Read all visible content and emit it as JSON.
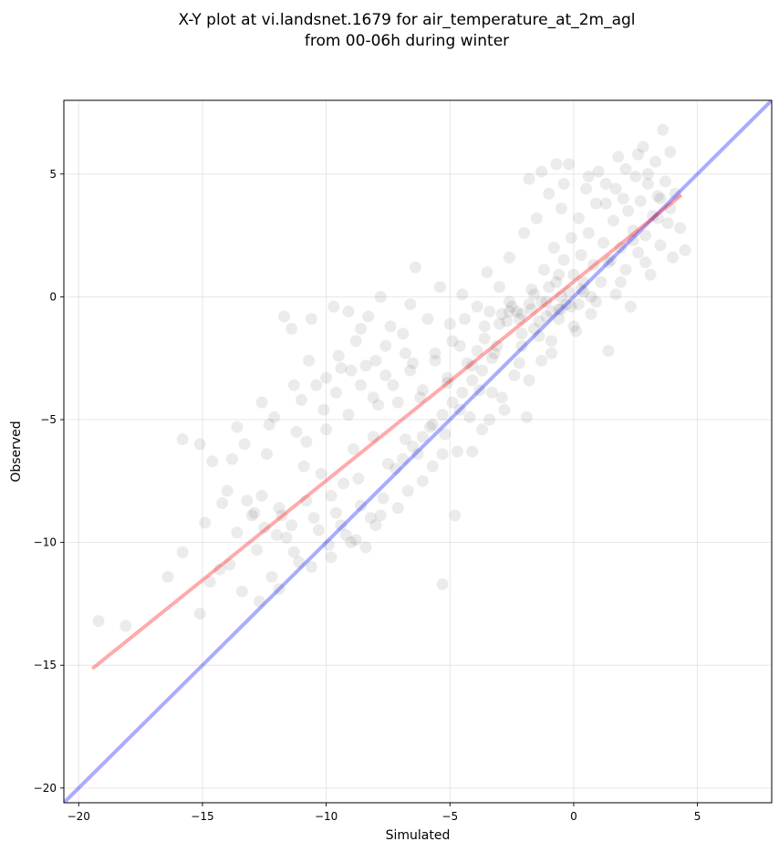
{
  "chart_data": {
    "type": "scatter",
    "title": "X-Y plot at vi.landsnet.1679 for air_temperature_at_2m_agl",
    "subtitle": "from 00-06h during winter",
    "xlabel": "Simulated",
    "ylabel": "Observed",
    "xlim": [
      -20.6,
      8.0
    ],
    "ylim": [
      -20.6,
      8.0
    ],
    "grid": true,
    "xticks": [
      -20,
      -15,
      -10,
      -5,
      0,
      5
    ],
    "yticks": [
      -20,
      -15,
      -10,
      -5,
      0,
      5
    ],
    "xtick_labels": [
      "−20",
      "−15",
      "−10",
      "−5",
      "0",
      "5"
    ],
    "ytick_labels": [
      "−20",
      "−15",
      "−10",
      "−5",
      "0",
      "5"
    ],
    "marker_color": "#000000",
    "marker_alpha": 0.08,
    "fit_line": {
      "color": "#ff0000",
      "opacity": 0.33,
      "x": [
        -19.4,
        4.3
      ],
      "y": [
        -15.1,
        4.1
      ]
    },
    "identity_line": {
      "color": "#0000ff",
      "opacity": 0.33,
      "x": [
        -20.6,
        8.0
      ],
      "y": [
        -20.6,
        8.0
      ]
    },
    "points": [
      [
        -19.2,
        -13.2
      ],
      [
        -18.1,
        -13.4
      ],
      [
        -16.4,
        -11.4
      ],
      [
        -15.8,
        -10.4
      ],
      [
        -15.8,
        -5.8
      ],
      [
        -15.1,
        -12.9
      ],
      [
        -14.9,
        -9.2
      ],
      [
        -15.1,
        -6.0
      ],
      [
        -14.6,
        -6.7
      ],
      [
        -14.2,
        -8.4
      ],
      [
        -14.0,
        -7.9
      ],
      [
        -13.8,
        -6.6
      ],
      [
        -13.6,
        -5.3
      ],
      [
        -13.3,
        -6.0
      ],
      [
        -13.2,
        -8.3
      ],
      [
        -12.9,
        -8.8
      ],
      [
        -12.6,
        -8.1
      ],
      [
        -12.6,
        -4.3
      ],
      [
        -12.4,
        -6.4
      ],
      [
        -12.3,
        -5.2
      ],
      [
        -12.1,
        -4.9
      ],
      [
        -12.0,
        -9.7
      ],
      [
        -11.8,
        -8.9
      ],
      [
        -11.7,
        -0.8
      ],
      [
        -11.4,
        -1.3
      ],
      [
        -11.3,
        -3.6
      ],
      [
        -11.2,
        -5.5
      ],
      [
        -11.0,
        -4.2
      ],
      [
        -10.9,
        -6.9
      ],
      [
        -10.7,
        -2.6
      ],
      [
        -10.6,
        -0.9
      ],
      [
        -10.4,
        -3.6
      ],
      [
        -10.2,
        -7.2
      ],
      [
        -10.0,
        -5.4
      ],
      [
        -9.8,
        -8.1
      ],
      [
        -9.7,
        -0.4
      ],
      [
        -9.5,
        -2.4
      ],
      [
        -9.3,
        -7.6
      ],
      [
        -9.1,
        -0.6
      ],
      [
        -9.0,
        -3.0
      ],
      [
        -8.9,
        -6.2
      ],
      [
        -8.7,
        -7.4
      ],
      [
        -8.6,
        -1.3
      ],
      [
        -8.4,
        -2.8
      ],
      [
        -8.3,
        -0.8
      ],
      [
        -8.1,
        -5.7
      ],
      [
        -7.9,
        -4.4
      ],
      [
        -7.8,
        0.0
      ],
      [
        -7.6,
        -2.0
      ],
      [
        -7.5,
        -6.8
      ],
      [
        -7.3,
        -3.6
      ],
      [
        -7.1,
        -8.6
      ],
      [
        -6.9,
        -1.5
      ],
      [
        -6.8,
        -5.8
      ],
      [
        -6.6,
        -0.3
      ],
      [
        -6.5,
        -2.7
      ],
      [
        -6.4,
        1.2
      ],
      [
        -6.2,
        -4.1
      ],
      [
        -6.1,
        -7.5
      ],
      [
        -5.9,
        -0.9
      ],
      [
        -5.8,
        -5.3
      ],
      [
        -5.6,
        -2.3
      ],
      [
        -5.4,
        0.4
      ],
      [
        -5.3,
        -6.4
      ],
      [
        -5.3,
        -11.7
      ],
      [
        -5.1,
        -3.5
      ],
      [
        -5.0,
        -1.1
      ],
      [
        -4.8,
        -8.9
      ],
      [
        -4.6,
        -4.6
      ],
      [
        -4.5,
        0.1
      ],
      [
        -4.3,
        -2.7
      ],
      [
        -4.1,
        -6.3
      ],
      [
        -3.9,
        -0.4
      ],
      [
        -3.8,
        -3.8
      ],
      [
        -3.6,
        -1.7
      ],
      [
        -3.5,
        1.0
      ],
      [
        -3.4,
        -5.0
      ],
      [
        -3.2,
        -2.3
      ],
      [
        -3.0,
        0.4
      ],
      [
        -2.9,
        -4.1
      ],
      [
        -2.7,
        -1.0
      ],
      [
        -2.6,
        1.6
      ],
      [
        -2.4,
        -3.2
      ],
      [
        -2.3,
        -0.6
      ],
      [
        -2.1,
        -2.0
      ],
      [
        -2.0,
        2.6
      ],
      [
        -1.9,
        -4.9
      ],
      [
        -1.7,
        0.3
      ],
      [
        -1.6,
        -1.3
      ],
      [
        -1.5,
        3.2
      ],
      [
        -1.3,
        -2.6
      ],
      [
        -1.2,
        1.1
      ],
      [
        -1.1,
        -0.2
      ],
      [
        -1.0,
        4.2
      ],
      [
        -0.9,
        -1.8
      ],
      [
        -0.8,
        2.0
      ],
      [
        -0.7,
        0.6
      ],
      [
        -0.6,
        -0.9
      ],
      [
        -0.5,
        3.6
      ],
      [
        -0.4,
        1.5
      ],
      [
        -0.3,
        -0.3
      ],
      [
        -0.2,
        5.4
      ],
      [
        -0.1,
        2.4
      ],
      [
        0.0,
        0.9
      ],
      [
        0.1,
        -1.4
      ],
      [
        0.2,
        3.2
      ],
      [
        0.3,
        1.7
      ],
      [
        0.4,
        0.2
      ],
      [
        0.5,
        4.4
      ],
      [
        0.6,
        2.6
      ],
      [
        0.7,
        -0.7
      ],
      [
        0.8,
        1.3
      ],
      [
        0.9,
        3.8
      ],
      [
        1.0,
        5.1
      ],
      [
        1.1,
        0.6
      ],
      [
        1.2,
        2.2
      ],
      [
        1.3,
        4.6
      ],
      [
        1.4,
        -2.2
      ],
      [
        1.5,
        1.5
      ],
      [
        1.6,
        3.1
      ],
      [
        1.7,
        0.1
      ],
      [
        1.8,
        5.7
      ],
      [
        1.9,
        2.0
      ],
      [
        2.0,
        4.0
      ],
      [
        2.1,
        1.1
      ],
      [
        2.2,
        3.5
      ],
      [
        2.3,
        -0.4
      ],
      [
        2.4,
        2.7
      ],
      [
        2.5,
        4.9
      ],
      [
        2.6,
        1.8
      ],
      [
        2.7,
        3.9
      ],
      [
        2.8,
        6.1
      ],
      [
        2.9,
        2.5
      ],
      [
        3.0,
        4.6
      ],
      [
        3.1,
        0.9
      ],
      [
        3.2,
        3.3
      ],
      [
        3.3,
        5.5
      ],
      [
        3.4,
        4.1
      ],
      [
        3.5,
        2.1
      ],
      [
        3.6,
        6.8
      ],
      [
        3.7,
        4.7
      ],
      [
        3.8,
        3.0
      ],
      [
        3.9,
        5.9
      ],
      [
        4.0,
        1.6
      ],
      [
        4.1,
        4.2
      ],
      [
        4.3,
        2.8
      ],
      [
        4.5,
        1.9
      ],
      [
        -14.7,
        -11.6
      ],
      [
        -13.9,
        -10.9
      ],
      [
        -13.4,
        -12.0
      ],
      [
        -12.8,
        -10.3
      ],
      [
        -12.2,
        -11.4
      ],
      [
        -11.6,
        -9.8
      ],
      [
        -11.1,
        -10.8
      ],
      [
        -10.5,
        -9.0
      ],
      [
        -9.9,
        -10.1
      ],
      [
        -9.4,
        -9.3
      ],
      [
        -8.8,
        -9.9
      ],
      [
        -8.2,
        -9.0
      ],
      [
        -7.7,
        -8.2
      ],
      [
        -7.2,
        -7.0
      ],
      [
        -6.7,
        -7.9
      ],
      [
        -6.3,
        -6.4
      ],
      [
        -5.7,
        -6.9
      ],
      [
        -5.2,
        -5.6
      ],
      [
        -4.7,
        -6.3
      ],
      [
        -4.2,
        -4.9
      ],
      [
        -3.7,
        -5.4
      ],
      [
        -3.3,
        -3.9
      ],
      [
        -2.8,
        -4.6
      ],
      [
        -2.2,
        -2.7
      ],
      [
        -1.8,
        -3.4
      ],
      [
        -1.4,
        -1.6
      ],
      [
        -0.9,
        -2.3
      ],
      [
        -0.5,
        -0.5
      ],
      [
        0.0,
        -1.2
      ],
      [
        0.4,
        0.6
      ],
      [
        0.9,
        -0.2
      ],
      [
        1.4,
        1.4
      ],
      [
        1.9,
        0.6
      ],
      [
        2.4,
        2.3
      ],
      [
        2.9,
        1.4
      ],
      [
        3.4,
        3.2
      ],
      [
        -13.0,
        -8.9
      ],
      [
        -12.5,
        -9.4
      ],
      [
        -11.9,
        -8.6
      ],
      [
        -11.4,
        -9.3
      ],
      [
        -10.8,
        -8.3
      ],
      [
        -10.3,
        -9.5
      ],
      [
        -9.6,
        -8.8
      ],
      [
        -9.2,
        -9.7
      ],
      [
        -8.6,
        -8.5
      ],
      [
        -8.0,
        -9.3
      ],
      [
        -10.1,
        -4.6
      ],
      [
        -9.6,
        -3.9
      ],
      [
        -9.1,
        -4.8
      ],
      [
        -8.6,
        -3.6
      ],
      [
        -8.1,
        -4.1
      ],
      [
        -7.6,
        -3.2
      ],
      [
        -7.1,
        -4.3
      ],
      [
        -6.6,
        -3.0
      ],
      [
        -6.1,
        -3.8
      ],
      [
        -5.6,
        -2.6
      ],
      [
        -5.1,
        -3.3
      ],
      [
        -4.6,
        -2.0
      ],
      [
        -4.1,
        -2.8
      ],
      [
        -3.6,
        -1.2
      ],
      [
        -3.1,
        -2.0
      ],
      [
        -2.6,
        -0.6
      ],
      [
        -2.1,
        -1.5
      ],
      [
        -1.6,
        0.1
      ],
      [
        -1.1,
        -0.8
      ],
      [
        -0.6,
        0.9
      ],
      [
        -3.4,
        -0.6
      ],
      [
        -3.0,
        -1.1
      ],
      [
        -2.6,
        -0.2
      ],
      [
        -2.2,
        -0.9
      ],
      [
        -1.8,
        -0.3
      ],
      [
        -1.4,
        -1.0
      ],
      [
        -1.0,
        0.4
      ],
      [
        -0.6,
        -0.5
      ],
      [
        -0.2,
        0.2
      ],
      [
        0.2,
        -0.3
      ],
      [
        -2.9,
        -0.7
      ],
      [
        -2.5,
        -0.4
      ],
      [
        -2.1,
        -0.7
      ],
      [
        -1.7,
        -0.5
      ],
      [
        -1.3,
        -0.2
      ],
      [
        -0.9,
        -0.6
      ],
      [
        -0.5,
        0.0
      ],
      [
        -0.1,
        -0.4
      ],
      [
        0.3,
        0.3
      ],
      [
        0.7,
        0.0
      ],
      [
        -6.9,
        -6.6
      ],
      [
        -6.5,
        -6.1
      ],
      [
        -6.1,
        -5.7
      ],
      [
        -5.7,
        -5.2
      ],
      [
        -5.3,
        -4.8
      ],
      [
        -4.9,
        -4.3
      ],
      [
        -4.5,
        -3.9
      ],
      [
        -4.1,
        -3.4
      ],
      [
        -3.7,
        -3.0
      ],
      [
        -3.3,
        -2.5
      ],
      [
        -14.3,
        -11.1
      ],
      [
        -13.6,
        -9.6
      ],
      [
        -12.7,
        -12.4
      ],
      [
        -11.9,
        -11.9
      ],
      [
        -11.3,
        -10.4
      ],
      [
        -10.6,
        -11.0
      ],
      [
        -9.8,
        -10.6
      ],
      [
        -9.0,
        -10.0
      ],
      [
        -8.4,
        -10.2
      ],
      [
        -7.8,
        -8.9
      ],
      [
        -4.9,
        -1.8
      ],
      [
        -4.4,
        -0.9
      ],
      [
        -3.9,
        -2.2
      ],
      [
        -6.8,
        -2.3
      ],
      [
        -7.4,
        -1.2
      ],
      [
        -8.0,
        -2.6
      ],
      [
        -8.8,
        -1.8
      ],
      [
        -9.4,
        -2.9
      ],
      [
        -10.0,
        -3.3
      ],
      [
        -10.8,
        -5.9
      ],
      [
        1.3,
        3.8
      ],
      [
        1.7,
        4.4
      ],
      [
        2.1,
        5.2
      ],
      [
        2.6,
        5.8
      ],
      [
        3.0,
        5.0
      ],
      [
        3.5,
        4.0
      ],
      [
        3.9,
        3.6
      ],
      [
        0.6,
        4.9
      ],
      [
        -0.4,
        4.6
      ],
      [
        -1.3,
        5.1
      ],
      [
        -1.8,
        4.8
      ],
      [
        -0.7,
        5.4
      ]
    ]
  }
}
